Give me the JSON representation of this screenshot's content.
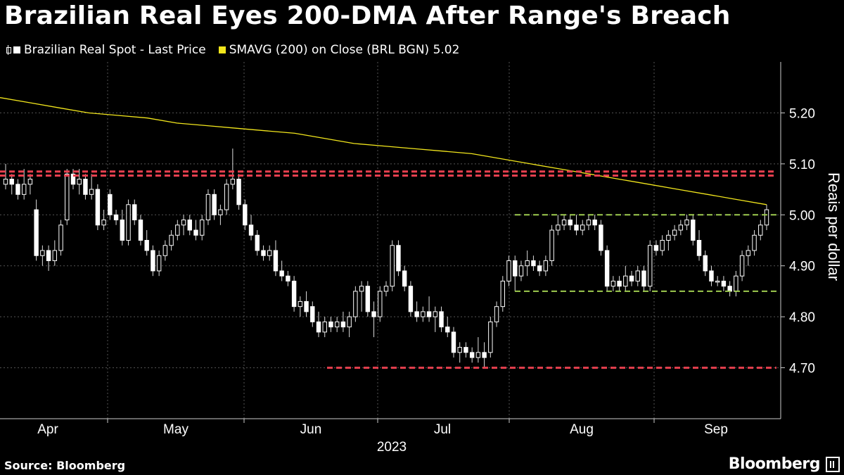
{
  "chart_data": {
    "type": "candlestick",
    "title": "Brazilian Real Eyes 200-DMA After Range's Breach",
    "source": "Source: Bloomberg",
    "brand": "Bloomberg",
    "ylabel": "Reais per dollar",
    "xlabel_year": "2023",
    "ylim": [
      4.6,
      5.3
    ],
    "y_ticks": [
      "4.70",
      "4.80",
      "4.90",
      "5.00",
      "5.10",
      "5.20"
    ],
    "x_ticks": [
      "Apr",
      "May",
      "Jun",
      "Jul",
      "Aug",
      "Sep"
    ],
    "legend": [
      {
        "label": "Brazilian Real Spot - Last Price",
        "color": "#ffffff"
      },
      {
        "label": "SMAVG (200)  on Close (BRL BGN) 5.02",
        "color": "#f2e61c"
      }
    ],
    "grid": true,
    "annotations": {
      "upper_range_lines": [
        5.085,
        5.077
      ],
      "upper_range_color": "#e8404f",
      "lower_range_line": 4.7,
      "lower_range_color": "#e8404f",
      "consolidation_lines": [
        5.0,
        4.85
      ],
      "consolidation_color": "#9ecb4f"
    },
    "candles": [
      [
        5.06,
        5.1,
        5.05,
        5.07
      ],
      [
        5.07,
        5.08,
        5.04,
        5.06
      ],
      [
        5.06,
        5.07,
        5.03,
        5.04
      ],
      [
        5.04,
        5.09,
        5.03,
        5.06
      ],
      [
        5.06,
        5.08,
        5.04,
        5.07
      ],
      [
        5.01,
        5.03,
        4.91,
        4.92
      ],
      [
        4.92,
        4.94,
        4.9,
        4.93
      ],
      [
        4.93,
        4.94,
        4.89,
        4.91
      ],
      [
        4.91,
        4.95,
        4.9,
        4.93
      ],
      [
        4.93,
        4.99,
        4.92,
        4.98
      ],
      [
        4.99,
        5.09,
        4.98,
        5.08
      ],
      [
        5.08,
        5.09,
        5.05,
        5.06
      ],
      [
        5.06,
        5.09,
        5.04,
        5.07
      ],
      [
        5.07,
        5.08,
        5.03,
        5.04
      ],
      [
        5.04,
        5.08,
        5.03,
        5.05
      ],
      [
        5.05,
        5.06,
        4.97,
        4.98
      ],
      [
        4.98,
        5.01,
        4.97,
        4.99
      ],
      [
        5.04,
        5.05,
        4.99,
        5.0
      ],
      [
        5.0,
        5.01,
        4.98,
        4.99
      ],
      [
        4.99,
        5.01,
        4.94,
        4.95
      ],
      [
        4.95,
        5.03,
        4.94,
        5.02
      ],
      [
        5.02,
        5.03,
        4.98,
        4.99
      ],
      [
        4.99,
        5.0,
        4.94,
        4.95
      ],
      [
        4.95,
        4.97,
        4.92,
        4.93
      ],
      [
        4.93,
        4.94,
        4.88,
        4.89
      ],
      [
        4.89,
        4.93,
        4.88,
        4.92
      ],
      [
        4.92,
        4.95,
        4.91,
        4.94
      ],
      [
        4.94,
        4.97,
        4.93,
        4.96
      ],
      [
        4.96,
        4.99,
        4.95,
        4.98
      ],
      [
        4.98,
        5.0,
        4.96,
        4.99
      ],
      [
        4.99,
        5.0,
        4.96,
        4.97
      ],
      [
        4.97,
        4.99,
        4.95,
        4.96
      ],
      [
        4.96,
        5.0,
        4.95,
        4.99
      ],
      [
        4.99,
        5.05,
        4.98,
        5.04
      ],
      [
        5.04,
        5.05,
        4.99,
        5.0
      ],
      [
        5.0,
        5.02,
        4.98,
        5.01
      ],
      [
        5.01,
        5.07,
        5.0,
        5.06
      ],
      [
        5.06,
        5.13,
        5.05,
        5.07
      ],
      [
        5.07,
        5.08,
        5.01,
        5.02
      ],
      [
        5.02,
        5.03,
        4.97,
        4.98
      ],
      [
        4.98,
        5.0,
        4.95,
        4.96
      ],
      [
        4.96,
        4.97,
        4.92,
        4.93
      ],
      [
        4.93,
        4.94,
        4.91,
        4.92
      ],
      [
        4.92,
        4.94,
        4.91,
        4.93
      ],
      [
        4.93,
        4.95,
        4.88,
        4.89
      ],
      [
        4.89,
        4.91,
        4.87,
        4.88
      ],
      [
        4.88,
        4.89,
        4.86,
        4.87
      ],
      [
        4.87,
        4.88,
        4.81,
        4.82
      ],
      [
        4.82,
        4.84,
        4.8,
        4.83
      ],
      [
        4.83,
        4.85,
        4.8,
        4.81
      ],
      [
        4.82,
        4.83,
        4.78,
        4.79
      ],
      [
        4.79,
        4.81,
        4.76,
        4.77
      ],
      [
        4.77,
        4.8,
        4.76,
        4.79
      ],
      [
        4.79,
        4.8,
        4.77,
        4.78
      ],
      [
        4.78,
        4.8,
        4.77,
        4.79
      ],
      [
        4.79,
        4.81,
        4.77,
        4.78
      ],
      [
        4.78,
        4.81,
        4.76,
        4.8
      ],
      [
        4.8,
        4.86,
        4.79,
        4.85
      ],
      [
        4.85,
        4.87,
        4.81,
        4.86
      ],
      [
        4.86,
        4.87,
        4.8,
        4.81
      ],
      [
        4.81,
        4.83,
        4.76,
        4.8
      ],
      [
        4.8,
        4.86,
        4.79,
        4.85
      ],
      [
        4.85,
        4.87,
        4.84,
        4.86
      ],
      [
        4.86,
        4.95,
        4.85,
        4.94
      ],
      [
        4.94,
        4.95,
        4.88,
        4.89
      ],
      [
        4.89,
        4.9,
        4.85,
        4.86
      ],
      [
        4.86,
        4.87,
        4.8,
        4.81
      ],
      [
        4.81,
        4.83,
        4.79,
        4.8
      ],
      [
        4.8,
        4.82,
        4.79,
        4.81
      ],
      [
        4.81,
        4.84,
        4.79,
        4.8
      ],
      [
        4.8,
        4.82,
        4.77,
        4.81
      ],
      [
        4.81,
        4.82,
        4.77,
        4.78
      ],
      [
        4.78,
        4.8,
        4.76,
        4.77
      ],
      [
        4.77,
        4.78,
        4.72,
        4.73
      ],
      [
        4.73,
        4.75,
        4.71,
        4.74
      ],
      [
        4.74,
        4.75,
        4.72,
        4.73
      ],
      [
        4.73,
        4.74,
        4.71,
        4.72
      ],
      [
        4.72,
        4.76,
        4.71,
        4.73
      ],
      [
        4.73,
        4.75,
        4.7,
        4.72
      ],
      [
        4.73,
        4.8,
        4.72,
        4.79
      ],
      [
        4.79,
        4.83,
        4.78,
        4.82
      ],
      [
        4.82,
        4.88,
        4.81,
        4.87
      ],
      [
        4.87,
        4.92,
        4.86,
        4.91
      ],
      [
        4.91,
        4.92,
        4.85,
        4.88
      ],
      [
        4.88,
        4.91,
        4.87,
        4.9
      ],
      [
        4.9,
        4.93,
        4.88,
        4.91
      ],
      [
        4.91,
        4.92,
        4.89,
        4.9
      ],
      [
        4.9,
        4.91,
        4.88,
        4.89
      ],
      [
        4.89,
        4.92,
        4.88,
        4.91
      ],
      [
        4.91,
        4.98,
        4.9,
        4.97
      ],
      [
        4.97,
        5.0,
        4.96,
        4.98
      ],
      [
        4.98,
        5.0,
        4.97,
        4.99
      ],
      [
        4.99,
        5.0,
        4.97,
        4.98
      ],
      [
        4.98,
        5.0,
        4.96,
        4.97
      ],
      [
        4.97,
        4.99,
        4.96,
        4.98
      ],
      [
        4.98,
        5.0,
        4.97,
        4.99
      ],
      [
        4.99,
        5.0,
        4.97,
        4.98
      ],
      [
        4.98,
        4.99,
        4.92,
        4.93
      ],
      [
        4.93,
        4.94,
        4.85,
        4.86
      ],
      [
        4.86,
        4.88,
        4.85,
        4.87
      ],
      [
        4.87,
        4.88,
        4.85,
        4.86
      ],
      [
        4.86,
        4.9,
        4.85,
        4.88
      ],
      [
        4.88,
        4.89,
        4.86,
        4.87
      ],
      [
        4.87,
        4.9,
        4.86,
        4.89
      ],
      [
        4.89,
        4.9,
        4.85,
        4.86
      ],
      [
        4.86,
        4.95,
        4.85,
        4.94
      ],
      [
        4.94,
        4.95,
        4.92,
        4.93
      ],
      [
        4.93,
        4.96,
        4.92,
        4.95
      ],
      [
        4.95,
        4.97,
        4.93,
        4.96
      ],
      [
        4.96,
        4.98,
        4.95,
        4.97
      ],
      [
        4.97,
        4.99,
        4.96,
        4.98
      ],
      [
        4.98,
        5.0,
        4.97,
        4.99
      ],
      [
        4.99,
        5.0,
        4.94,
        4.95
      ],
      [
        4.95,
        4.97,
        4.91,
        4.92
      ],
      [
        4.92,
        4.93,
        4.88,
        4.89
      ],
      [
        4.89,
        4.9,
        4.86,
        4.87
      ],
      [
        4.87,
        4.88,
        4.86,
        4.87
      ],
      [
        4.87,
        4.88,
        4.85,
        4.86
      ],
      [
        4.86,
        4.87,
        4.84,
        4.85
      ],
      [
        4.85,
        4.89,
        4.84,
        4.88
      ],
      [
        4.88,
        4.93,
        4.87,
        4.92
      ],
      [
        4.92,
        4.94,
        4.9,
        4.93
      ],
      [
        4.93,
        4.97,
        4.92,
        4.96
      ],
      [
        4.96,
        4.99,
        4.95,
        4.98
      ],
      [
        4.98,
        5.02,
        4.97,
        5.01
      ]
    ],
    "sma200": [
      5.23,
      5.22,
      5.21,
      5.2,
      5.195,
      5.19,
      5.18,
      5.175,
      5.17,
      5.165,
      5.16,
      5.15,
      5.14,
      5.135,
      5.13,
      5.125,
      5.12,
      5.11,
      5.1,
      5.09,
      5.08,
      5.07,
      5.06,
      5.05,
      5.04,
      5.03,
      5.02
    ]
  }
}
